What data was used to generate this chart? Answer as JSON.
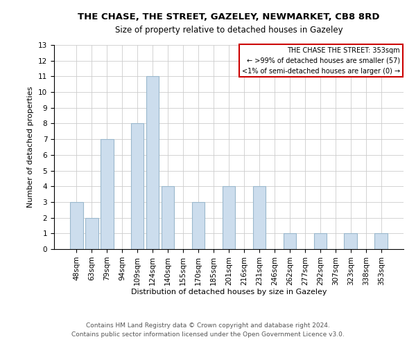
{
  "title": "THE CHASE, THE STREET, GAZELEY, NEWMARKET, CB8 8RD",
  "subtitle": "Size of property relative to detached houses in Gazeley",
  "xlabel": "Distribution of detached houses by size in Gazeley",
  "ylabel": "Number of detached properties",
  "footer_line1": "Contains HM Land Registry data © Crown copyright and database right 2024.",
  "footer_line2": "Contains public sector information licensed under the Open Government Licence v3.0.",
  "bar_labels": [
    "48sqm",
    "63sqm",
    "79sqm",
    "94sqm",
    "109sqm",
    "124sqm",
    "140sqm",
    "155sqm",
    "170sqm",
    "185sqm",
    "201sqm",
    "216sqm",
    "231sqm",
    "246sqm",
    "262sqm",
    "277sqm",
    "292sqm",
    "307sqm",
    "323sqm",
    "338sqm",
    "353sqm"
  ],
  "bar_values": [
    3,
    2,
    7,
    0,
    8,
    11,
    4,
    0,
    3,
    0,
    4,
    0,
    4,
    0,
    1,
    0,
    1,
    0,
    1,
    0,
    1
  ],
  "bar_color": "#ccdded",
  "bar_edge_color": "#9ab8cc",
  "ylim": [
    0,
    13
  ],
  "yticks": [
    0,
    1,
    2,
    3,
    4,
    5,
    6,
    7,
    8,
    9,
    10,
    11,
    12,
    13
  ],
  "annotation_title": "THE CHASE THE STREET: 353sqm",
  "annotation_line1": "← >99% of detached houses are smaller (57)",
  "annotation_line2": "<1% of semi-detached houses are larger (0) →",
  "annotation_box_color": "#ffffff",
  "annotation_border_color": "#cc0000",
  "grid_color": "#cccccc",
  "background_color": "#ffffff",
  "title_fontsize": 9.5,
  "subtitle_fontsize": 8.5,
  "axis_label_fontsize": 8,
  "tick_fontsize": 7.5,
  "footer_fontsize": 6.5
}
